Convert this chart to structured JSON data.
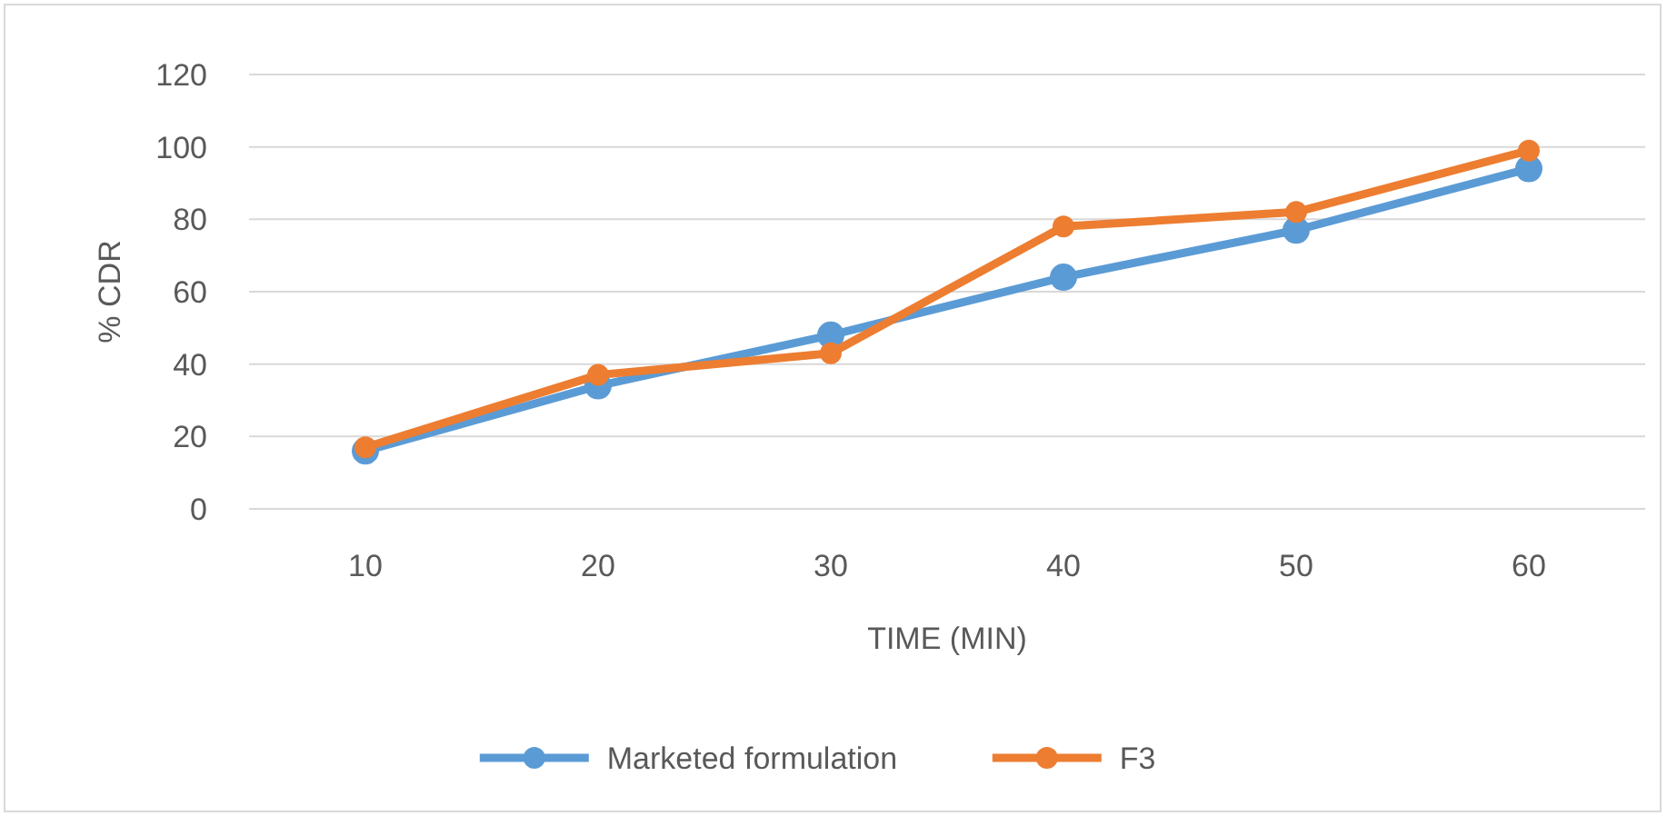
{
  "chart_data": {
    "type": "line",
    "xlabel": "TIME (MIN)",
    "ylabel": "% CDR",
    "categories": [
      "10",
      "20",
      "30",
      "40",
      "50",
      "60"
    ],
    "series": [
      {
        "name": "Marketed formulation",
        "color": "#5b9bd5",
        "values": [
          16,
          34,
          48,
          64,
          77,
          94
        ]
      },
      {
        "name": "F3",
        "color": "#ed7d31",
        "values": [
          17,
          37,
          43,
          78,
          82,
          99
        ]
      }
    ],
    "ylim": [
      0,
      120
    ],
    "yticks": [
      0,
      20,
      40,
      60,
      80,
      100,
      120
    ],
    "grid": "y",
    "legend": "bottom",
    "marker": "circle",
    "line_style": "solid"
  }
}
